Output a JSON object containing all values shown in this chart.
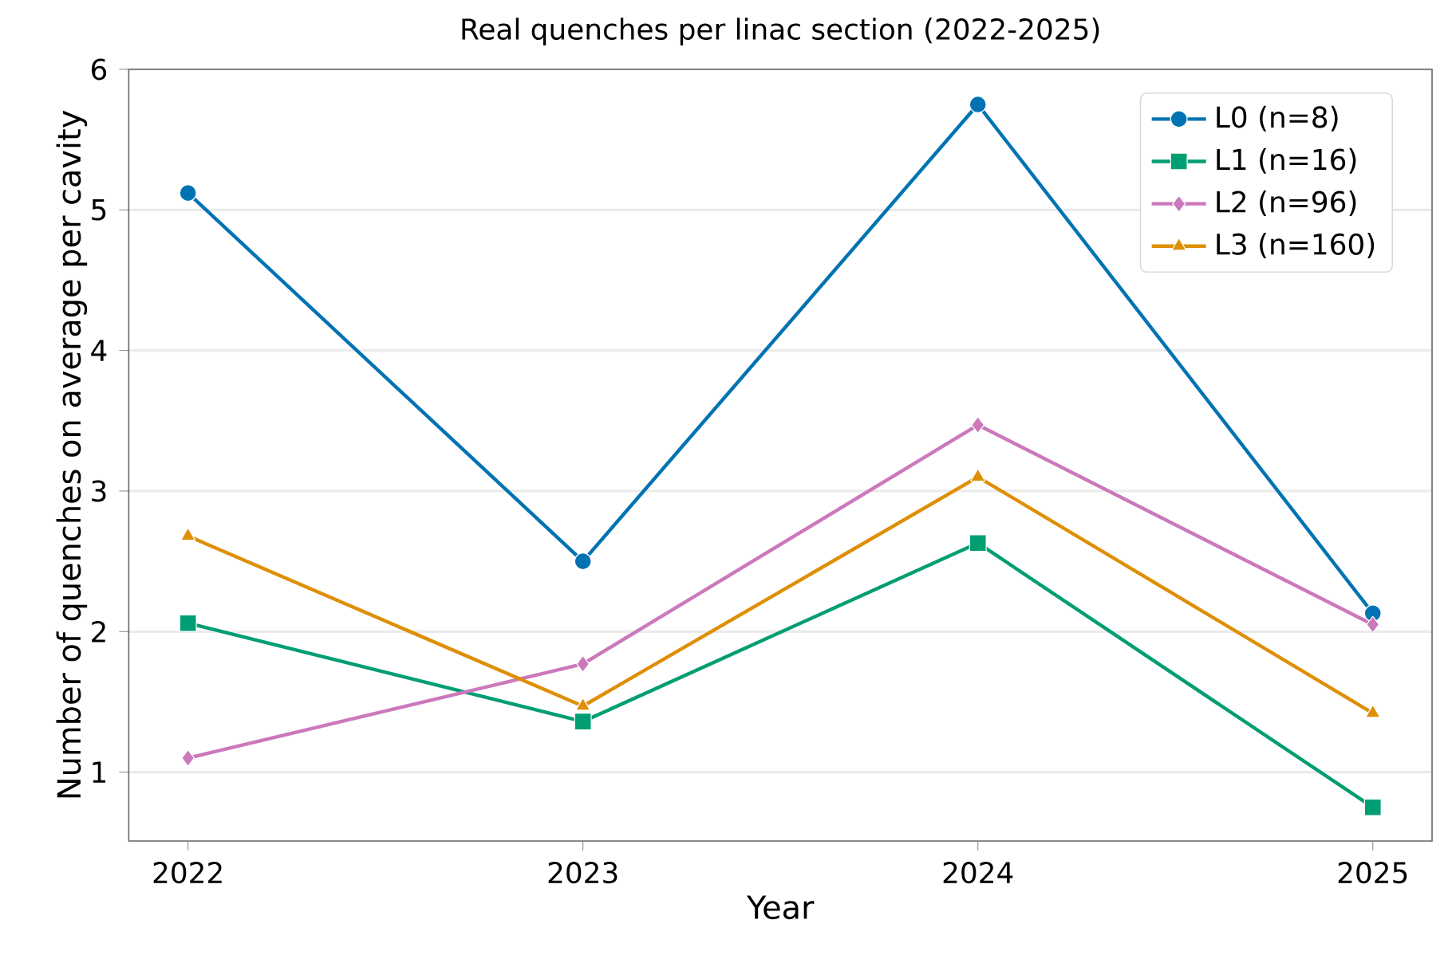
{
  "chart_data": {
    "type": "line",
    "title": "Real quenches per linac section (2022-2025)",
    "xlabel": "Year",
    "ylabel": "Number of quenches on average per cavity",
    "x": [
      2022,
      2023,
      2024,
      2025
    ],
    "series": [
      {
        "name": "L0 (n=8)",
        "color": "#0173b2",
        "marker": "circle",
        "values": [
          5.12,
          2.5,
          5.75,
          2.13
        ]
      },
      {
        "name": "L1 (n=16)",
        "color": "#029e73",
        "marker": "square",
        "values": [
          2.06,
          1.36,
          2.63,
          0.75
        ]
      },
      {
        "name": "L2 (n=96)",
        "color": "#cc78bc",
        "marker": "diamond",
        "values": [
          1.1,
          1.77,
          3.47,
          2.05
        ]
      },
      {
        "name": "L3 (n=160)",
        "color": "#de8f05",
        "marker": "triangle",
        "values": [
          2.68,
          1.47,
          3.1,
          1.42
        ]
      }
    ],
    "xlim": [
      2021.85,
      2025.15
    ],
    "ylim": [
      0.51,
      6
    ],
    "xticks": [
      2022,
      2023,
      2024,
      2025
    ],
    "yticks": [
      1,
      2,
      3,
      4,
      5,
      6
    ],
    "grid": "y",
    "legend": "top right",
    "line_style": "solid"
  }
}
